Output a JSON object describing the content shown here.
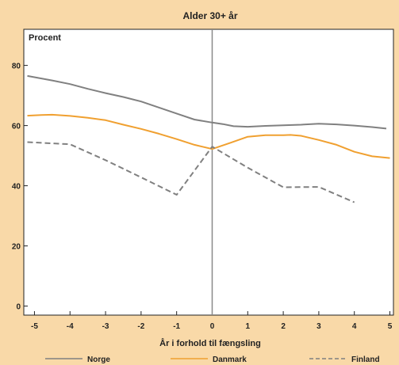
{
  "chart_data": {
    "type": "line",
    "title": "Alder 30+ år",
    "ylabel": "Procent",
    "xlabel": "År i forhold til fængsling",
    "xlim": [
      -5.3,
      5.1
    ],
    "ylim": [
      -3,
      92
    ],
    "x_ticks": [
      "-5",
      "-4",
      "-3",
      "-2",
      "-1",
      "0",
      "1",
      "2",
      "3",
      "4",
      "5"
    ],
    "y_ticks": [
      "0",
      "20",
      "40",
      "60",
      "80"
    ],
    "grid": false,
    "legend_position": "bottom",
    "series": [
      {
        "name": "Norge",
        "color": "#808080",
        "dash": "solid",
        "x": [
          -5.2,
          -4.5,
          -4,
          -3.5,
          -3,
          -2.5,
          -2,
          -1.5,
          -1,
          -0.5,
          0,
          0.3,
          0.6,
          1,
          1.5,
          2,
          2.5,
          3,
          3.5,
          4,
          4.5,
          4.9
        ],
        "y": [
          76.5,
          75,
          73.8,
          72.2,
          70.8,
          69.5,
          68,
          66,
          64,
          62,
          61,
          60.5,
          59.8,
          59.6,
          59.9,
          60.1,
          60.3,
          60.6,
          60.4,
          60,
          59.5,
          59
        ]
      },
      {
        "name": "Danmark",
        "color": "#f0a030",
        "dash": "solid",
        "x": [
          -5.2,
          -4.8,
          -4.5,
          -4,
          -3.5,
          -3,
          -2.5,
          -2,
          -1.5,
          -1,
          -0.5,
          0,
          0.5,
          1,
          1.5,
          2,
          2.2,
          2.5,
          3,
          3.5,
          4,
          4.5,
          5
        ],
        "y": [
          63.3,
          63.5,
          63.6,
          63.2,
          62.6,
          61.8,
          60.3,
          58.9,
          57.3,
          55.5,
          53.6,
          52.2,
          54.2,
          56.3,
          56.8,
          56.8,
          56.9,
          56.6,
          55.2,
          53.6,
          51.3,
          49.8,
          49.2
        ]
      },
      {
        "name": "Finland",
        "color": "#808080",
        "dash": "dashed",
        "x": [
          -5.2,
          -4,
          -3,
          -2,
          -1,
          0,
          1,
          2,
          3,
          4
        ],
        "y": [
          54.5,
          53.8,
          48.5,
          42.8,
          37,
          53,
          46,
          39.5,
          39.6,
          34.5
        ]
      }
    ]
  }
}
